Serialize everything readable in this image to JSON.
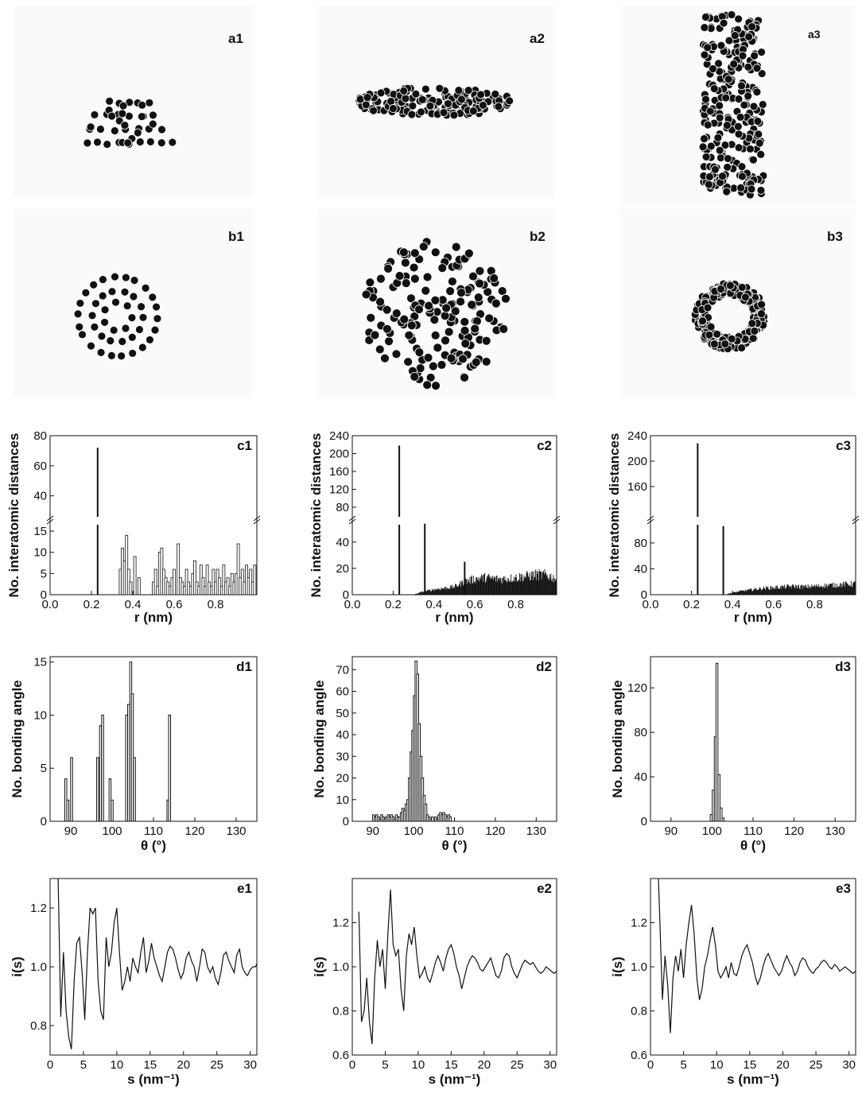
{
  "panels": {
    "a1": "a1",
    "a2": "a2",
    "a3": "a3",
    "b1": "b1",
    "b2": "b2",
    "b3": "b3",
    "c1": "c1",
    "c2": "c2",
    "c3": "c3",
    "d1": "d1",
    "d2": "d2",
    "d3": "d3",
    "e1": "e1",
    "e2": "e2",
    "e3": "e3"
  },
  "structures": {
    "a1": {
      "view": "side",
      "shape": "dome",
      "atom_count": 43
    },
    "a2": {
      "view": "side",
      "shape": "flat-disk",
      "atom_count": 170
    },
    "a3": {
      "view": "side",
      "shape": "tube",
      "atom_count": 260
    },
    "b1": {
      "view": "top",
      "shape": "concentric-rings",
      "atom_count": 43
    },
    "b2": {
      "view": "top",
      "shape": "filled-disk",
      "atom_count": 170
    },
    "b3": {
      "view": "top",
      "shape": "ring",
      "atom_count": 260
    }
  },
  "chart_data": [
    {
      "id": "c1",
      "type": "bar",
      "label": "c1",
      "xlabel": "r (nm)",
      "ylabel": "No. interatomic distances",
      "xlim": [
        0,
        1.0
      ],
      "xticks": [
        "0.0",
        "0.2",
        "0.4",
        "0.6",
        "0.8"
      ],
      "y_broken": true,
      "ylim_lower": [
        0,
        18
      ],
      "yticks_lower": [
        "5",
        "10",
        "15"
      ],
      "ytick_zero": "0",
      "ylim_upper": [
        25,
        80
      ],
      "yticks_upper": [
        "40",
        "60",
        "80"
      ],
      "peaks": [
        {
          "r": 0.23,
          "count": 72
        }
      ],
      "x": [
        0.34,
        0.35,
        0.36,
        0.37,
        0.38,
        0.39,
        0.41,
        0.43,
        0.5,
        0.51,
        0.52,
        0.53,
        0.54,
        0.55,
        0.56,
        0.57,
        0.58,
        0.59,
        0.6,
        0.62,
        0.63,
        0.64,
        0.65,
        0.66,
        0.67,
        0.68,
        0.69,
        0.7,
        0.71,
        0.72,
        0.73,
        0.74,
        0.75,
        0.76,
        0.77,
        0.78,
        0.79,
        0.8,
        0.81,
        0.82,
        0.83,
        0.84,
        0.85,
        0.86,
        0.87,
        0.88,
        0.89,
        0.9,
        0.91,
        0.92,
        0.93,
        0.94,
        0.95,
        0.96,
        0.97,
        0.98,
        0.99
      ],
      "values": [
        6,
        11,
        8,
        14,
        6,
        3,
        9,
        4,
        3,
        6,
        2,
        10,
        11,
        6,
        4,
        3,
        2,
        4,
        6,
        12,
        4,
        3,
        2,
        6,
        3,
        2,
        5,
        8,
        3,
        2,
        7,
        4,
        2,
        7,
        3,
        2,
        6,
        3,
        6,
        4,
        2,
        7,
        3,
        4,
        2,
        5,
        3,
        5,
        12,
        4,
        6,
        3,
        7,
        4,
        6,
        3,
        7
      ]
    },
    {
      "id": "c2",
      "type": "bar",
      "label": "c2",
      "xlabel": "r (nm)",
      "ylabel": "No. interatomic distances",
      "xlim": [
        0,
        1.0
      ],
      "xticks": [
        "0.0",
        "0.2",
        "0.4",
        "0.6",
        "0.8"
      ],
      "y_broken": true,
      "ylim_lower": [
        0,
        58
      ],
      "yticks_lower": [
        "20",
        "40"
      ],
      "ytick_zero": "0",
      "ylim_upper": [
        55,
        240
      ],
      "yticks_upper": [
        "80",
        "120",
        "160",
        "200",
        "240"
      ],
      "peaks": [
        {
          "r": 0.23,
          "count": 218
        },
        {
          "r": 0.355,
          "count": 54
        },
        {
          "r": 0.55,
          "count": 25
        }
      ],
      "envelope": [
        [
          0.3,
          0
        ],
        [
          0.34,
          2
        ],
        [
          0.4,
          4
        ],
        [
          0.45,
          5
        ],
        [
          0.5,
          6
        ],
        [
          0.55,
          10
        ],
        [
          0.6,
          12
        ],
        [
          0.65,
          13
        ],
        [
          0.7,
          12
        ],
        [
          0.75,
          12
        ],
        [
          0.8,
          13
        ],
        [
          0.85,
          14
        ],
        [
          0.9,
          15
        ],
        [
          0.95,
          15
        ],
        [
          1.0,
          12
        ]
      ]
    },
    {
      "id": "c3",
      "type": "bar",
      "label": "c3",
      "xlabel": "r (nm)",
      "ylabel": "No. interatomic distances",
      "xlim": [
        0,
        1.0
      ],
      "xticks": [
        "0.0",
        "0.2",
        "0.4",
        "0.6",
        "0.8"
      ],
      "y_broken": true,
      "ylim_lower": [
        0,
        118
      ],
      "yticks_lower": [
        "40",
        "80"
      ],
      "ytick_zero": "0",
      "ylim_upper": [
        110,
        240
      ],
      "yticks_upper": [
        "160",
        "200",
        "240"
      ],
      "peaks": [
        {
          "r": 0.23,
          "count": 228
        },
        {
          "r": 0.355,
          "count": 106
        }
      ],
      "envelope": [
        [
          0.36,
          0
        ],
        [
          0.4,
          3
        ],
        [
          0.45,
          6
        ],
        [
          0.5,
          8
        ],
        [
          0.55,
          10
        ],
        [
          0.6,
          11
        ],
        [
          0.65,
          12
        ],
        [
          0.7,
          13
        ],
        [
          0.75,
          12
        ],
        [
          0.8,
          13
        ],
        [
          0.85,
          14
        ],
        [
          0.9,
          15
        ],
        [
          0.95,
          16
        ],
        [
          1.0,
          17
        ]
      ]
    },
    {
      "id": "d1",
      "type": "bar",
      "label": "d1",
      "xlabel": "θ (°)",
      "ylabel": "No. bonding angle",
      "xlim": [
        85,
        135
      ],
      "xticks": [
        "90",
        "100",
        "110",
        "120",
        "130"
      ],
      "ylim": [
        0,
        15.5
      ],
      "yticks": [
        "0",
        "5",
        "10",
        "15"
      ],
      "x": [
        88.8,
        89.3,
        90.2,
        96.5,
        97.2,
        97.7,
        99.5,
        100.0,
        103.5,
        104.0,
        104.5,
        104.9,
        105.4,
        113.5,
        113.9
      ],
      "values": [
        4,
        2,
        6,
        6,
        9,
        10,
        4,
        2,
        10,
        11,
        15,
        12,
        6,
        2,
        10
      ]
    },
    {
      "id": "d2",
      "type": "bar",
      "label": "d2",
      "xlabel": "θ (°)",
      "ylabel": "No. bonding angle",
      "xlim": [
        85,
        135
      ],
      "xticks": [
        "90",
        "100",
        "110",
        "120",
        "130"
      ],
      "ylim": [
        0,
        76
      ],
      "yticks": [
        "0",
        "10",
        "20",
        "30",
        "40",
        "50",
        "60",
        "70"
      ],
      "x": [
        90.2,
        90.6,
        91,
        91.4,
        91.8,
        92.2,
        92.6,
        93,
        93.4,
        93.8,
        94.2,
        94.6,
        95,
        95.4,
        95.8,
        96.2,
        96.6,
        97,
        97.4,
        97.8,
        98.2,
        98.6,
        99,
        99.4,
        99.8,
        100.2,
        100.6,
        101,
        101.4,
        101.8,
        102.2,
        102.6,
        103,
        103.4,
        103.8,
        104.2,
        104.6,
        105,
        105.4,
        105.8,
        106.2,
        106.6,
        107,
        107.4,
        107.8,
        108.2,
        108.6,
        109
      ],
      "values": [
        3,
        2,
        3,
        2,
        1,
        3,
        2,
        1,
        2,
        3,
        2,
        3,
        2,
        1,
        3,
        2,
        2,
        4,
        6,
        5,
        8,
        10,
        20,
        32,
        42,
        58,
        74,
        68,
        45,
        30,
        20,
        12,
        8,
        3,
        2,
        1,
        2,
        0,
        2,
        1,
        3,
        4,
        3,
        4,
        3,
        2,
        3,
        2
      ]
    },
    {
      "id": "d3",
      "type": "bar",
      "label": "d3",
      "xlabel": "θ (°)",
      "ylabel": "No. bonding angle",
      "xlim": [
        85,
        135
      ],
      "xticks": [
        "90",
        "100",
        "110",
        "120",
        "130"
      ],
      "ylim": [
        0,
        148
      ],
      "yticks": [
        "0",
        "40",
        "80",
        "120"
      ],
      "x": [
        99.8,
        100.3,
        100.8,
        101.2,
        101.7,
        102.2,
        102.7
      ],
      "values": [
        6,
        28,
        76,
        142,
        42,
        12,
        3
      ]
    },
    {
      "id": "e1",
      "type": "line",
      "label": "e1",
      "xlabel": "s (nm⁻¹)",
      "ylabel": "i(s)",
      "xlim": [
        0,
        31
      ],
      "xticks": [
        "0",
        "5",
        "10",
        "15",
        "20",
        "25",
        "30"
      ],
      "ylim": [
        0.7,
        1.3
      ],
      "yticks": [
        "0.8",
        "1.0",
        "1.2"
      ],
      "x": [
        1.2,
        1.6,
        2.0,
        2.4,
        2.8,
        3.2,
        3.6,
        4.0,
        4.4,
        4.8,
        5.2,
        5.6,
        6.0,
        6.4,
        6.8,
        7.2,
        7.6,
        8.0,
        8.4,
        8.8,
        9.2,
        9.6,
        10.0,
        10.4,
        10.8,
        11.2,
        11.6,
        12.0,
        12.4,
        12.8,
        13.2,
        13.6,
        14.0,
        14.4,
        14.8,
        15.2,
        15.6,
        16.0,
        16.4,
        16.8,
        17.2,
        17.6,
        18.0,
        18.4,
        18.8,
        19.2,
        19.6,
        20.0,
        20.4,
        20.8,
        21.2,
        21.6,
        22.0,
        22.4,
        22.8,
        23.2,
        23.6,
        24.0,
        24.4,
        24.8,
        25.2,
        25.6,
        26.0,
        26.4,
        26.8,
        27.2,
        27.6,
        28.0,
        28.4,
        28.8,
        29.2,
        29.6,
        30.0,
        30.4,
        30.8,
        31.0
      ],
      "y": [
        1.3,
        0.83,
        1.05,
        0.85,
        0.76,
        0.72,
        0.95,
        1.08,
        1.1,
        0.98,
        0.82,
        1.05,
        1.2,
        1.18,
        1.2,
        0.95,
        0.85,
        0.82,
        1.1,
        1.0,
        1.05,
        1.15,
        1.2,
        1.05,
        0.92,
        0.95,
        1.0,
        0.95,
        1.03,
        1.0,
        0.98,
        1.05,
        1.1,
        0.98,
        1.02,
        1.08,
        1.03,
        1.0,
        0.97,
        0.95,
        1.0,
        1.05,
        1.07,
        1.06,
        1.03,
        0.99,
        0.96,
        0.98,
        1.03,
        1.05,
        1.02,
        1.0,
        0.95,
        1.0,
        1.06,
        1.05,
        1.0,
        0.98,
        1.0,
        0.96,
        0.94,
        0.98,
        1.04,
        1.05,
        1.02,
        1.0,
        0.98,
        1.04,
        1.06,
        1.0,
        0.98,
        0.97,
        0.99,
        1.0,
        1.0,
        1.01
      ]
    },
    {
      "id": "e2",
      "type": "line",
      "label": "e2",
      "xlabel": "s (nm⁻¹)",
      "ylabel": "i(s)",
      "xlim": [
        0,
        31
      ],
      "xticks": [
        "0",
        "5",
        "10",
        "15",
        "20",
        "25",
        "30"
      ],
      "ylim": [
        0.6,
        1.4
      ],
      "yticks": [
        "0.6",
        "0.8",
        "1.0",
        "1.2"
      ],
      "x": [
        1.0,
        1.4,
        1.8,
        2.2,
        2.6,
        3.0,
        3.4,
        3.8,
        4.2,
        4.6,
        5.0,
        5.4,
        5.8,
        6.2,
        6.6,
        7.0,
        7.4,
        7.8,
        8.2,
        8.6,
        9.0,
        9.4,
        9.8,
        10.2,
        10.6,
        11.0,
        11.4,
        11.8,
        12.2,
        12.6,
        13.0,
        13.4,
        13.8,
        14.2,
        14.6,
        15.0,
        15.4,
        15.8,
        16.2,
        16.6,
        17.0,
        17.4,
        17.8,
        18.2,
        18.6,
        19.0,
        19.4,
        19.8,
        20.2,
        20.6,
        21.0,
        21.4,
        21.8,
        22.2,
        22.6,
        23.0,
        23.4,
        23.8,
        24.2,
        24.6,
        25.0,
        25.4,
        25.8,
        26.2,
        26.6,
        27.0,
        27.4,
        27.8,
        28.2,
        28.6,
        29.0,
        29.4,
        29.8,
        30.2,
        30.6,
        31.0
      ],
      "y": [
        1.25,
        0.75,
        0.8,
        0.95,
        0.75,
        0.65,
        0.95,
        1.12,
        1.0,
        1.08,
        0.9,
        1.15,
        1.35,
        1.1,
        1.05,
        1.08,
        0.9,
        0.8,
        1.05,
        1.15,
        1.1,
        1.18,
        1.05,
        0.95,
        0.97,
        1.0,
        0.95,
        0.93,
        0.97,
        1.02,
        1.05,
        1.02,
        0.98,
        1.04,
        1.08,
        1.1,
        1.06,
        1.0,
        0.96,
        0.9,
        0.95,
        1.0,
        1.03,
        1.05,
        1.04,
        1.02,
        0.99,
        0.98,
        1.0,
        1.02,
        1.04,
        1.0,
        0.96,
        0.95,
        0.98,
        1.04,
        1.06,
        1.05,
        1.0,
        0.97,
        0.95,
        0.98,
        1.01,
        1.03,
        1.02,
        1.01,
        1.02,
        1.0,
        0.98,
        0.97,
        0.98,
        1.0,
        0.99,
        0.98,
        0.97,
        0.98
      ]
    },
    {
      "id": "e3",
      "type": "line",
      "label": "e3",
      "xlabel": "s (nm⁻¹)",
      "ylabel": "i(s)",
      "xlim": [
        0,
        31
      ],
      "xticks": [
        "0",
        "5",
        "10",
        "15",
        "20",
        "25",
        "30"
      ],
      "ylim": [
        0.6,
        1.4
      ],
      "yticks": [
        "0.6",
        "0.8",
        "1.0",
        "1.2"
      ],
      "x": [
        1.2,
        1.4,
        1.8,
        2.2,
        2.6,
        3.0,
        3.4,
        3.8,
        4.2,
        4.6,
        5.0,
        5.4,
        5.8,
        6.2,
        6.6,
        7.0,
        7.4,
        7.8,
        8.2,
        8.6,
        9.0,
        9.4,
        9.8,
        10.2,
        10.6,
        11.0,
        11.4,
        11.8,
        12.2,
        12.6,
        13.0,
        13.4,
        13.8,
        14.2,
        14.6,
        15.0,
        15.4,
        15.8,
        16.2,
        16.6,
        17.0,
        17.4,
        17.8,
        18.2,
        18.6,
        19.0,
        19.4,
        19.8,
        20.2,
        20.6,
        21.0,
        21.4,
        21.8,
        22.2,
        22.6,
        23.0,
        23.4,
        23.8,
        24.2,
        24.6,
        25.0,
        25.4,
        25.8,
        26.2,
        26.6,
        27.0,
        27.4,
        27.8,
        28.2,
        28.6,
        29.0,
        29.4,
        29.8,
        30.2,
        30.6,
        31.0
      ],
      "y": [
        1.4,
        1.22,
        0.85,
        1.05,
        0.92,
        0.7,
        0.95,
        1.05,
        0.98,
        1.08,
        0.95,
        1.1,
        1.2,
        1.28,
        1.15,
        0.95,
        0.85,
        0.9,
        1.0,
        1.05,
        1.12,
        1.18,
        1.1,
        0.98,
        0.95,
        0.97,
        1.0,
        0.95,
        1.02,
        0.97,
        0.96,
        1.0,
        1.05,
        1.08,
        1.1,
        1.06,
        1.02,
        0.96,
        0.92,
        0.95,
        1.0,
        1.04,
        1.06,
        1.03,
        1.0,
        0.98,
        0.96,
        0.98,
        1.02,
        1.05,
        1.02,
        1.0,
        0.96,
        0.98,
        1.02,
        1.04,
        1.03,
        1.0,
        0.98,
        0.97,
        0.99,
        1.0,
        1.02,
        1.03,
        1.02,
        1.0,
        0.99,
        1.01,
        1.0,
        0.98,
        0.99,
        1.0,
        0.99,
        0.98,
        0.97,
        0.98
      ]
    }
  ]
}
